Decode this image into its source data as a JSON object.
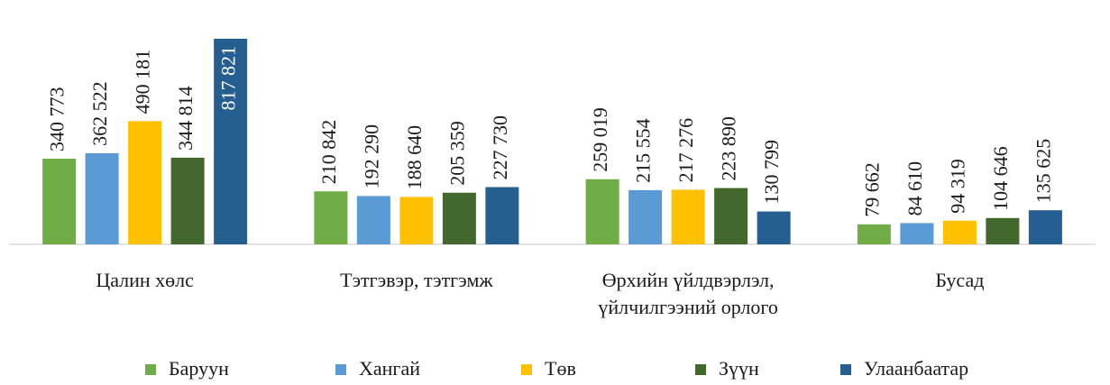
{
  "chart_data": {
    "type": "bar",
    "categories": [
      "Цалин хөлс",
      "Тэтгэвэр, тэтгэмж",
      "Өрхийн үйлдвэрлэл, үйлчилгээний  орлого",
      "Бусад"
    ],
    "series": [
      {
        "name": "Баруун",
        "color": "#70ad47",
        "values": [
          340773,
          210842,
          259019,
          79662
        ],
        "value_labels": [
          "340 773",
          "210 842",
          "259 019",
          "79 662"
        ]
      },
      {
        "name": "Хангай",
        "color": "#5b9bd5",
        "values": [
          362522,
          192290,
          215554,
          84610
        ],
        "value_labels": [
          "362 522",
          "192 290",
          "215 554",
          "84 610"
        ]
      },
      {
        "name": "Төв",
        "color": "#ffc000",
        "values": [
          490181,
          188640,
          217276,
          94319
        ],
        "value_labels": [
          "490 181",
          "188 640",
          "217 276",
          "94 319"
        ]
      },
      {
        "name": "Зүүн",
        "color": "#43682b",
        "values": [
          344814,
          205359,
          223890,
          104646
        ],
        "value_labels": [
          "344 814",
          "205 359",
          "223 890",
          "104 646"
        ]
      },
      {
        "name": "Улаанбаатар",
        "color": "#255e91",
        "values": [
          817821,
          227730,
          130799,
          135625
        ],
        "value_labels": [
          "817 821",
          "227 730",
          "130 799",
          "135 625"
        ]
      }
    ],
    "legend": "bottom"
  }
}
